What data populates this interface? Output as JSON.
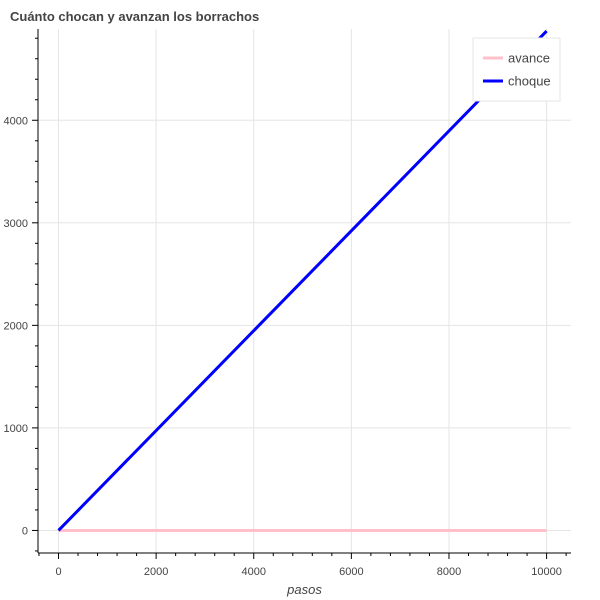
{
  "chart_data": {
    "type": "line",
    "title": "Cuánto chocan y avanzan los borrachos",
    "xlabel": "pasos",
    "ylabel": "",
    "xlim": [
      -420,
      10500
    ],
    "ylim": [
      -220,
      4890
    ],
    "x_ticks": [
      0,
      2000,
      4000,
      6000,
      8000,
      10000
    ],
    "x_tick_labels": [
      "0",
      "2000",
      "4000",
      "6000",
      "8000",
      "10000"
    ],
    "y_ticks": [
      0,
      1000,
      2000,
      3000,
      4000
    ],
    "y_tick_labels": [
      "0",
      "1000",
      "2000",
      "3000",
      "4000"
    ],
    "grid": true,
    "legend_position": "top-right",
    "series": [
      {
        "name": "avance",
        "color": "#ffc0cb",
        "x": [
          0,
          10000
        ],
        "y": [
          0,
          0
        ]
      },
      {
        "name": "choque",
        "color": "#0000ff",
        "x": [
          0,
          10000
        ],
        "y": [
          0,
          4870
        ]
      }
    ]
  }
}
